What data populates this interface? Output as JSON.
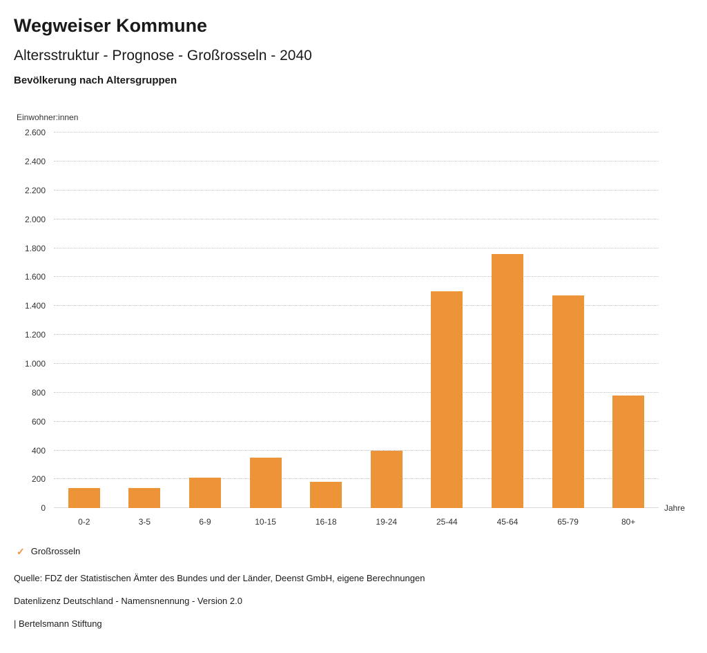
{
  "header": {
    "brand": "Wegweiser Kommune",
    "title": "Altersstruktur - Prognose - Großrosseln - 2040",
    "subtitle": "Bevölkerung nach Altersgruppen"
  },
  "chart_data": {
    "type": "bar",
    "title": "Bevölkerung nach Altersgruppen",
    "y_axis_title": "Einwohner:innen",
    "x_axis_title": "Jahre",
    "categories": [
      "0-2",
      "3-5",
      "6-9",
      "10-15",
      "16-18",
      "19-24",
      "25-44",
      "45-64",
      "65-79",
      "80+"
    ],
    "values": [
      140,
      140,
      210,
      350,
      185,
      400,
      1500,
      1760,
      1475,
      780
    ],
    "series_name": "Großrosseln",
    "ylim": [
      0,
      2600
    ],
    "y_tick_step": 200,
    "y_tick_labels": [
      "0",
      "200",
      "400",
      "600",
      "800",
      "1.000",
      "1.200",
      "1.400",
      "1.600",
      "1.800",
      "2.000",
      "2.200",
      "2.400",
      "2.600"
    ],
    "grid": "horizontal-dotted",
    "legend_position": "bottom-left",
    "bar_color": "#ED9438"
  },
  "legend": {
    "check_icon": "✓",
    "label": "Großrosseln",
    "accent_color": "#ED9438"
  },
  "footer": {
    "source": "Quelle: FDZ der Statistischen Ämter des Bundes und der Länder, Deenst GmbH, eigene Berechnungen",
    "license": "Datenlizenz Deutschland - Namensnennung - Version 2.0",
    "attribution": "| Bertelsmann Stiftung"
  }
}
